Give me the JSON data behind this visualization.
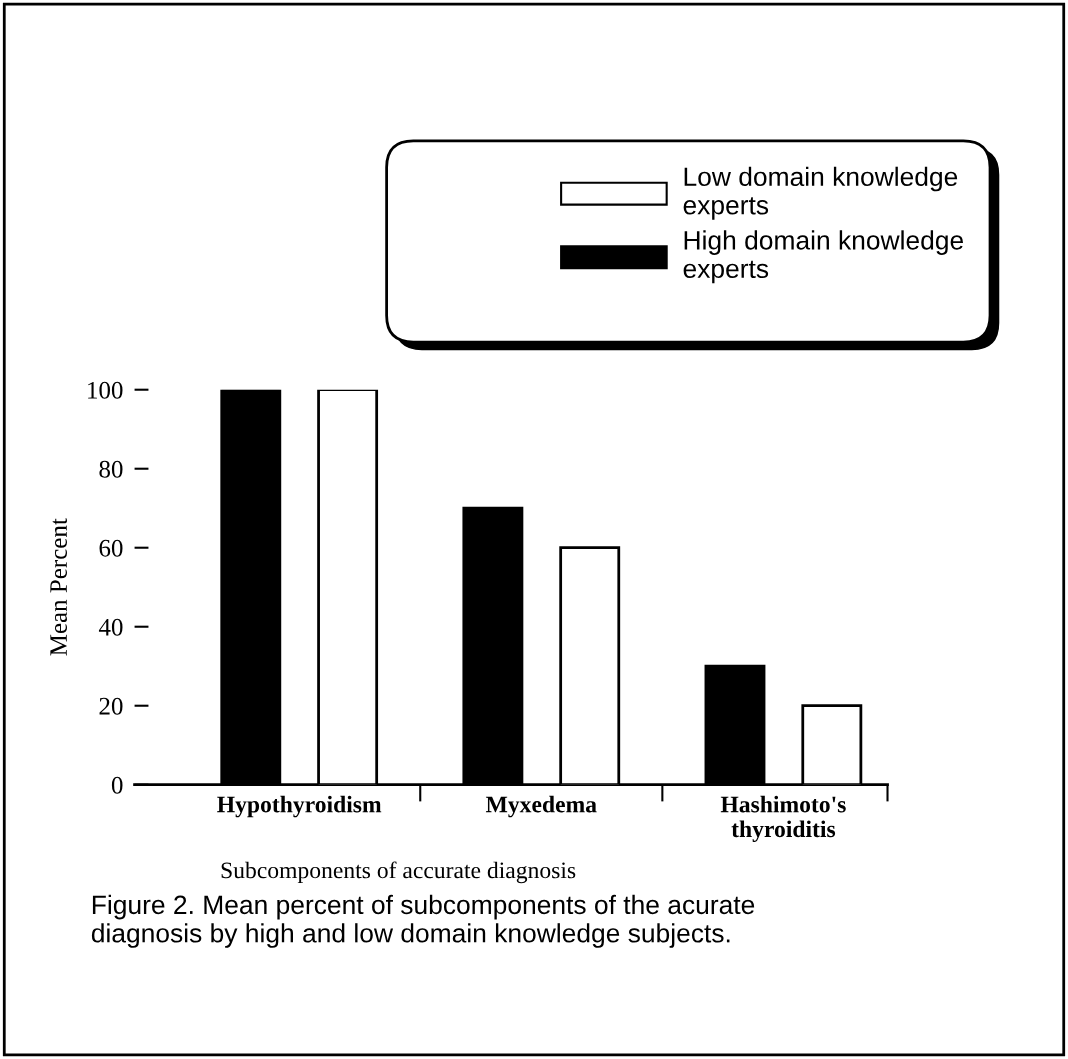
{
  "chart_data": {
    "type": "bar",
    "categories": [
      "Hypothyroidism",
      "Myxedema",
      "Hashimoto's\nthyroiditis"
    ],
    "series": [
      {
        "name": "High domain knowledge\nexperts",
        "color": "#000000",
        "values": [
          100,
          70,
          30
        ]
      },
      {
        "name": "Low domain knowledge\nexperts",
        "color": "#ffffff",
        "values": [
          100,
          60,
          20
        ]
      }
    ],
    "ylabel": "Mean Percent",
    "xlabel": "Subcomponents of accurate diagnosis",
    "ylim": [
      0,
      100
    ],
    "yticks": [
      0,
      20,
      40,
      60,
      80,
      100
    ],
    "legend": "top right",
    "grid": false,
    "annotations": [
      "Figure 2. Mean percent of subcomponents of the acurate\ndiagnosis by high and low domain knowledge subjects."
    ]
  }
}
